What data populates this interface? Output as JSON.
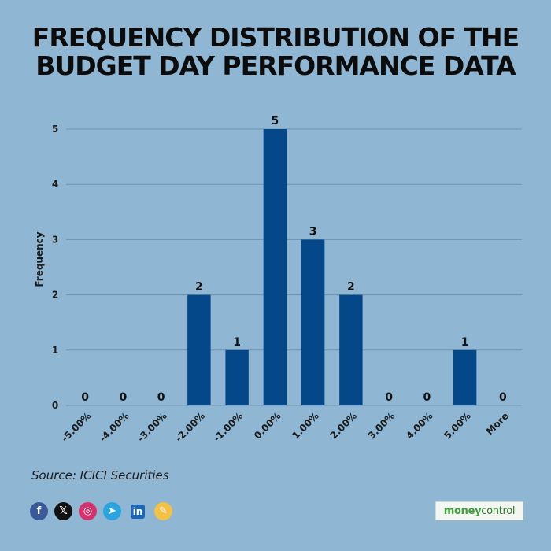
{
  "chart_data": {
    "type": "bar",
    "title_lines": [
      "FREQUENCY DISTRIBUTION OF THE",
      "BUDGET DAY PERFORMANCE DATA"
    ],
    "categories": [
      "-5.00%",
      "-4.00%",
      "-3.00%",
      "-2.00%",
      "-1.00%",
      "0.00%",
      "1.00%",
      "2.00%",
      "3.00%",
      "4.00%",
      "5.00%",
      "More"
    ],
    "values": [
      0,
      0,
      0,
      2,
      1,
      5,
      3,
      2,
      0,
      0,
      1,
      0
    ],
    "xlabel": "",
    "ylabel": "Frequency",
    "ylim": [
      0,
      5
    ],
    "yticks": [
      0,
      1,
      2,
      3,
      4,
      5
    ],
    "grid": true,
    "bar_color": "#054889",
    "grid_color": "#6e94b2"
  },
  "source": "Source: ICICI Securities",
  "social_icons": [
    {
      "name": "facebook-icon",
      "glyph": "f"
    },
    {
      "name": "x-icon",
      "glyph": "𝕏"
    },
    {
      "name": "instagram-icon",
      "glyph": "◎"
    },
    {
      "name": "telegram-icon",
      "glyph": "➤"
    },
    {
      "name": "linkedin-icon",
      "glyph": "in"
    },
    {
      "name": "koo-icon",
      "glyph": "✎"
    }
  ],
  "brand": {
    "part1": "money",
    "part2": "control"
  }
}
